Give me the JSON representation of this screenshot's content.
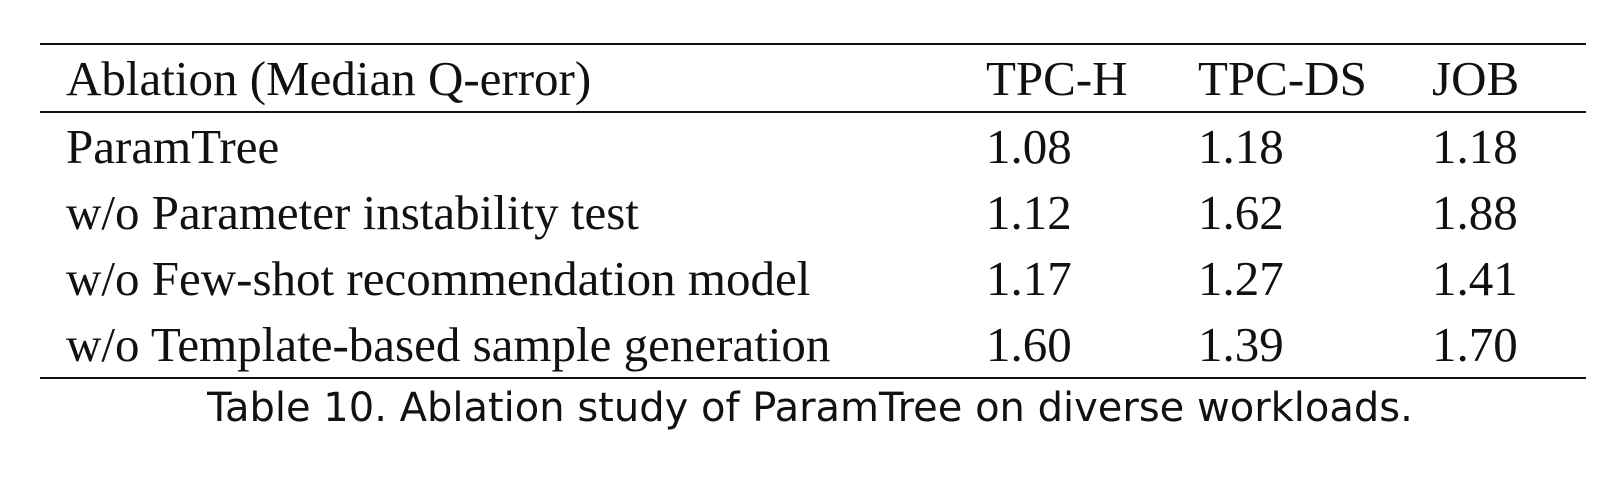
{
  "table": {
    "headers": [
      "Ablation (Median Q-error)",
      "TPC-H",
      "TPC-DS",
      "JOB"
    ],
    "rows": [
      [
        "ParamTree",
        "1.08",
        "1.18",
        "1.18"
      ],
      [
        "w/o Parameter instability test",
        "1.12",
        "1.62",
        "1.88"
      ],
      [
        "w/o Few-shot recommendation model",
        "1.17",
        "1.27",
        "1.41"
      ],
      [
        "w/o Template-based sample generation",
        "1.60",
        "1.39",
        "1.70"
      ]
    ]
  },
  "caption": "Table 10.  Ablation study of ParamTree on diverse workloads."
}
